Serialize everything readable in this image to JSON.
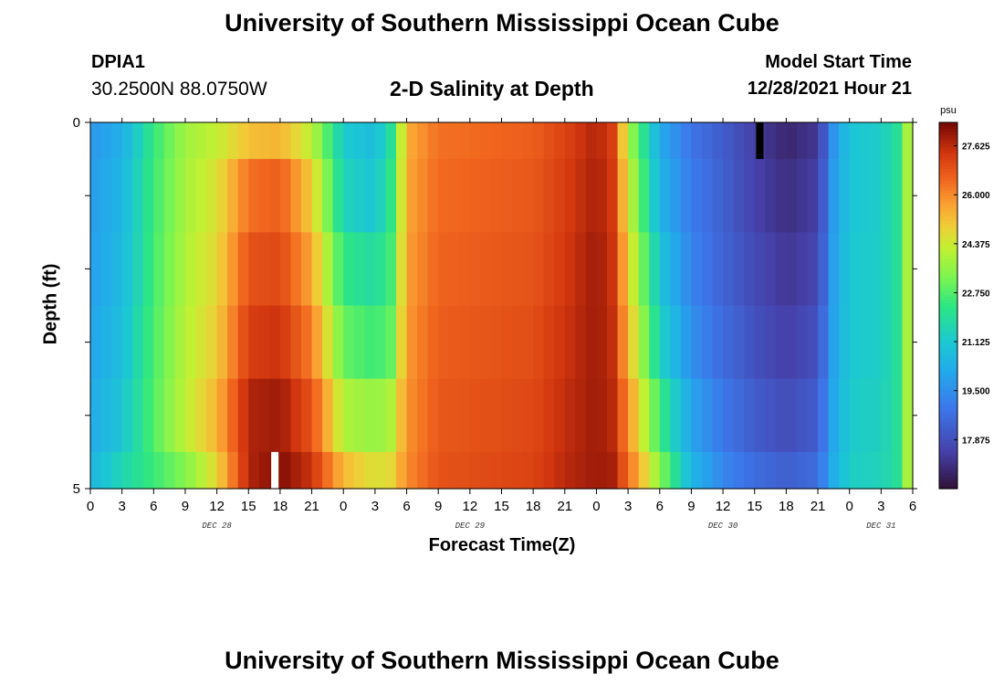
{
  "header": {
    "title": "University of Southern Mississippi Ocean Cube",
    "station": "DPIA1",
    "coordinates": "30.2500N  88.0750W",
    "subtitle": "2-D Salinity at Depth",
    "model_start_label": "Model Start Time",
    "model_start_value": "12/28/2021 Hour 21"
  },
  "footer": {
    "title": "University of Southern Mississippi Ocean Cube"
  },
  "chart_data": {
    "type": "heatmap",
    "title": "2-D Salinity at Depth",
    "xlabel": "Forecast Time(Z)",
    "ylabel": "Depth (ft)",
    "x_unit": "hours since Dec 28 00Z",
    "x_range": [
      0,
      78
    ],
    "y_range": [
      0,
      5
    ],
    "y_ticks": [
      0,
      1,
      2,
      3,
      4,
      5
    ],
    "y_tick_labels": [
      "0",
      "",
      "",
      "",
      "",
      "5"
    ],
    "x_tick_hours": [
      0,
      3,
      6,
      9,
      12,
      15,
      18,
      21,
      24,
      27,
      30,
      33,
      36,
      39,
      42,
      45,
      48,
      51,
      54,
      57,
      60,
      63,
      66,
      69,
      72,
      75,
      78
    ],
    "x_tick_labels": [
      "0",
      "3",
      "6",
      "9",
      "12",
      "15",
      "18",
      "21",
      "0",
      "3",
      "6",
      "9",
      "12",
      "15",
      "18",
      "21",
      "0",
      "3",
      "6",
      "9",
      "12",
      "15",
      "18",
      "21",
      "0",
      "3",
      "6"
    ],
    "date_labels": [
      {
        "hour": 12,
        "label": "DEC 28"
      },
      {
        "hour": 36,
        "label": "DEC 29"
      },
      {
        "hour": 60,
        "label": "DEC 30"
      },
      {
        "hour": 75,
        "label": "DEC 31"
      }
    ],
    "colorbar": {
      "unit": "psu",
      "min": 16.25,
      "max": 28.4,
      "ticks": [
        17.875,
        19.5,
        21.125,
        22.75,
        24.375,
        26.0,
        27.625
      ],
      "tick_labels": [
        "17.875",
        "19.500",
        "21.125",
        "22.750",
        "24.375",
        "26.000",
        "27.625"
      ]
    },
    "depth_layers": [
      "0-0.5 ft",
      "0.5-1.5 ft",
      "1.5-2.5 ft",
      "2.5-3.5 ft",
      "3.5-4.5 ft",
      "4.5-5 ft"
    ],
    "time_series": [
      {
        "name": "layer 1",
        "points": [
          [
            0,
            19.7
          ],
          [
            3,
            20.3
          ],
          [
            6,
            22.4
          ],
          [
            9,
            23.8
          ],
          [
            12,
            24.3
          ],
          [
            15,
            25.2
          ],
          [
            18,
            25.4
          ],
          [
            21,
            24.2
          ],
          [
            24,
            21.2
          ],
          [
            27,
            20.7
          ],
          [
            28.5,
            22.0
          ],
          [
            30,
            25.5
          ],
          [
            33,
            26.4
          ],
          [
            36,
            26.5
          ],
          [
            39,
            26.6
          ],
          [
            42,
            26.7
          ],
          [
            45,
            27.2
          ],
          [
            48,
            27.8
          ],
          [
            49.5,
            27.3
          ],
          [
            51,
            24.0
          ],
          [
            54,
            20.2
          ],
          [
            57,
            18.8
          ],
          [
            60,
            18.2
          ],
          [
            63,
            17.4
          ],
          [
            66,
            16.8
          ],
          [
            69,
            17.2
          ],
          [
            70.5,
            19.6
          ],
          [
            72,
            21.0
          ],
          [
            75,
            21.3
          ],
          [
            76.5,
            22.0
          ],
          [
            78,
            24.8
          ]
        ]
      },
      {
        "name": "layer 2",
        "points": [
          [
            0,
            19.8
          ],
          [
            3,
            20.5
          ],
          [
            6,
            22.5
          ],
          [
            9,
            23.9
          ],
          [
            12,
            24.6
          ],
          [
            15,
            26.4
          ],
          [
            18,
            26.7
          ],
          [
            21,
            25.0
          ],
          [
            24,
            21.5
          ],
          [
            27,
            21.0
          ],
          [
            28.5,
            22.3
          ],
          [
            30,
            25.6
          ],
          [
            33,
            26.5
          ],
          [
            36,
            26.6
          ],
          [
            39,
            26.7
          ],
          [
            42,
            26.8
          ],
          [
            45,
            27.3
          ],
          [
            48,
            27.9
          ],
          [
            49.5,
            27.4
          ],
          [
            51,
            24.5
          ],
          [
            54,
            20.5
          ],
          [
            57,
            19.0
          ],
          [
            60,
            18.3
          ],
          [
            63,
            17.5
          ],
          [
            66,
            17.0
          ],
          [
            69,
            17.4
          ],
          [
            70.5,
            19.8
          ],
          [
            72,
            21.0
          ],
          [
            75,
            21.3
          ],
          [
            76.5,
            22.0
          ],
          [
            78,
            24.8
          ]
        ]
      },
      {
        "name": "layer 3",
        "points": [
          [
            0,
            19.9
          ],
          [
            3,
            20.6
          ],
          [
            6,
            22.6
          ],
          [
            9,
            24.0
          ],
          [
            12,
            24.8
          ],
          [
            15,
            26.9
          ],
          [
            18,
            27.1
          ],
          [
            21,
            25.6
          ],
          [
            24,
            22.3
          ],
          [
            27,
            21.8
          ],
          [
            28.5,
            22.6
          ],
          [
            30,
            25.7
          ],
          [
            33,
            26.6
          ],
          [
            36,
            26.7
          ],
          [
            39,
            26.8
          ],
          [
            42,
            26.9
          ],
          [
            45,
            27.4
          ],
          [
            48,
            28.0
          ],
          [
            49.5,
            27.5
          ],
          [
            51,
            25.0
          ],
          [
            54,
            21.0
          ],
          [
            57,
            19.2
          ],
          [
            60,
            18.4
          ],
          [
            63,
            17.7
          ],
          [
            66,
            17.2
          ],
          [
            69,
            17.6
          ],
          [
            70.5,
            19.9
          ],
          [
            72,
            21.1
          ],
          [
            75,
            21.3
          ],
          [
            76.5,
            22.0
          ],
          [
            78,
            24.8
          ]
        ]
      },
      {
        "name": "layer 4",
        "points": [
          [
            0,
            20.0
          ],
          [
            3,
            20.8
          ],
          [
            6,
            22.7
          ],
          [
            9,
            24.1
          ],
          [
            12,
            25.0
          ],
          [
            15,
            27.3
          ],
          [
            18,
            27.5
          ],
          [
            21,
            26.2
          ],
          [
            24,
            23.0
          ],
          [
            27,
            22.5
          ],
          [
            28.5,
            23.0
          ],
          [
            30,
            25.8
          ],
          [
            33,
            26.7
          ],
          [
            36,
            26.8
          ],
          [
            39,
            26.9
          ],
          [
            42,
            27.0
          ],
          [
            45,
            27.5
          ],
          [
            48,
            28.0
          ],
          [
            49.5,
            27.6
          ],
          [
            51,
            25.4
          ],
          [
            54,
            21.5
          ],
          [
            57,
            19.5
          ],
          [
            60,
            18.6
          ],
          [
            63,
            17.9
          ],
          [
            66,
            17.4
          ],
          [
            69,
            17.9
          ],
          [
            70.5,
            20.0
          ],
          [
            72,
            21.1
          ],
          [
            75,
            21.3
          ],
          [
            76.5,
            22.0
          ],
          [
            78,
            24.8
          ]
        ]
      },
      {
        "name": "layer 5",
        "points": [
          [
            0,
            20.2
          ],
          [
            3,
            21.0
          ],
          [
            6,
            22.8
          ],
          [
            9,
            24.2
          ],
          [
            12,
            25.4
          ],
          [
            15,
            27.8
          ],
          [
            18,
            28.0
          ],
          [
            21,
            26.9
          ],
          [
            24,
            24.0
          ],
          [
            27,
            23.6
          ],
          [
            28.5,
            24.0
          ],
          [
            30,
            25.9
          ],
          [
            33,
            26.8
          ],
          [
            36,
            26.9
          ],
          [
            39,
            27.0
          ],
          [
            42,
            27.1
          ],
          [
            45,
            27.6
          ],
          [
            48,
            28.0
          ],
          [
            49.5,
            27.7
          ],
          [
            51,
            26.0
          ],
          [
            54,
            22.5
          ],
          [
            57,
            20.0
          ],
          [
            60,
            18.9
          ],
          [
            63,
            18.2
          ],
          [
            66,
            17.8
          ],
          [
            69,
            18.2
          ],
          [
            70.5,
            20.1
          ],
          [
            72,
            21.2
          ],
          [
            75,
            21.4
          ],
          [
            76.5,
            22.0
          ],
          [
            78,
            24.8
          ]
        ]
      },
      {
        "name": "layer 6",
        "points": [
          [
            0,
            20.5
          ],
          [
            3,
            21.6
          ],
          [
            6,
            22.5
          ],
          [
            9,
            23.4
          ],
          [
            12,
            24.8
          ],
          [
            15,
            27.8
          ],
          [
            18,
            28.3
          ],
          [
            21,
            27.5
          ],
          [
            24,
            25.3
          ],
          [
            27,
            24.6
          ],
          [
            28.5,
            24.8
          ],
          [
            30,
            26.0
          ],
          [
            33,
            26.9
          ],
          [
            36,
            27.0
          ],
          [
            39,
            27.1
          ],
          [
            42,
            27.2
          ],
          [
            45,
            27.7
          ],
          [
            48,
            28.0
          ],
          [
            49.5,
            27.9
          ],
          [
            51,
            26.5
          ],
          [
            54,
            23.5
          ],
          [
            57,
            20.5
          ],
          [
            60,
            19.3
          ],
          [
            63,
            18.6
          ],
          [
            66,
            18.3
          ],
          [
            69,
            18.6
          ],
          [
            70.5,
            20.3
          ],
          [
            72,
            21.3
          ],
          [
            75,
            21.5
          ],
          [
            76.5,
            22.0
          ],
          [
            78,
            24.8
          ]
        ]
      }
    ],
    "missing_cells": [
      {
        "layer": 1,
        "hour": 63.5,
        "color": "#000000"
      },
      {
        "layer": 6,
        "hour": 17.5,
        "color": "#ffffff"
      }
    ]
  }
}
